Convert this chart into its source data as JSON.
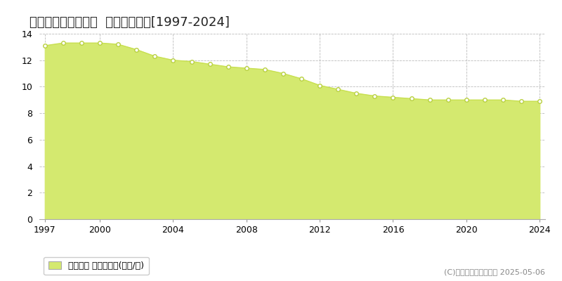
{
  "title": "熊毛郡平生町平生村  基準地価推移[1997-2024]",
  "years": [
    1997,
    1998,
    1999,
    2000,
    2001,
    2002,
    2003,
    2004,
    2005,
    2006,
    2007,
    2008,
    2009,
    2010,
    2011,
    2012,
    2013,
    2014,
    2015,
    2016,
    2017,
    2018,
    2019,
    2020,
    2021,
    2022,
    2023,
    2024
  ],
  "values": [
    13.1,
    13.3,
    13.3,
    13.3,
    13.2,
    12.8,
    12.3,
    12.0,
    11.9,
    11.7,
    11.5,
    11.4,
    11.3,
    11.0,
    10.6,
    10.1,
    9.8,
    9.5,
    9.3,
    9.2,
    9.1,
    9.0,
    9.0,
    9.0,
    9.0,
    9.0,
    8.9,
    8.9
  ],
  "fill_color": "#d4e96f",
  "line_color": "#c8e050",
  "marker_facecolor": "#ffffff",
  "marker_edgecolor": "#b8d040",
  "background_color": "#ffffff",
  "plot_bg_color": "#ffffff",
  "grid_color": "#bbbbbb",
  "ylim": [
    0,
    14
  ],
  "yticks": [
    0,
    2,
    4,
    6,
    8,
    10,
    12,
    14
  ],
  "xticks": [
    1997,
    2000,
    2004,
    2008,
    2012,
    2016,
    2020,
    2024
  ],
  "legend_label": "基準地価 平均坪単価(万円/坪)",
  "copyright_text": "(C)土地価格ドットコム 2025-05-06",
  "title_fontsize": 13,
  "axis_fontsize": 9,
  "legend_fontsize": 9,
  "copyright_fontsize": 8
}
